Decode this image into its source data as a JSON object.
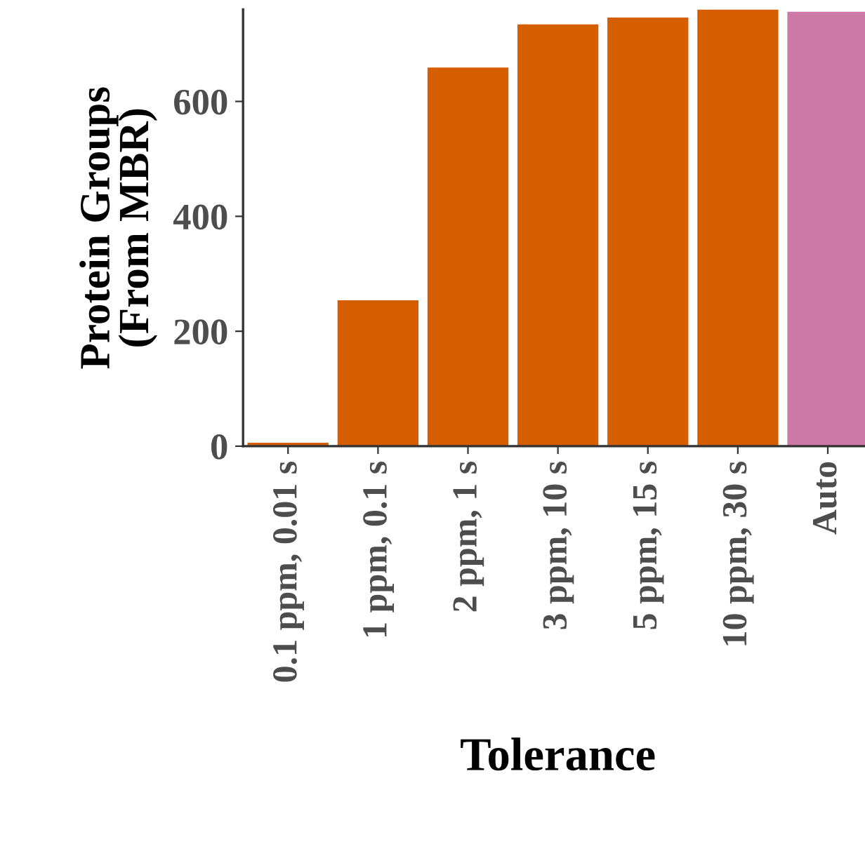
{
  "chart_data": {
    "type": "bar",
    "xlabel": "Tolerance",
    "ylabel": "Protein Groups\n(From MBR)",
    "categories": [
      "0.1 ppm, 0.01 s",
      "1 ppm, 0.1 s",
      "2 ppm, 1 s",
      "3 ppm, 10 s",
      "5 ppm, 15 s",
      "10 ppm, 30 s",
      "Auto"
    ],
    "values": [
      6,
      254,
      659,
      734,
      746,
      760,
      756
    ],
    "colors": [
      "#d55e00",
      "#d55e00",
      "#d55e00",
      "#d55e00",
      "#d55e00",
      "#d55e00",
      "#cc79a7"
    ],
    "ylim": [
      0,
      760
    ],
    "yticks": [
      0,
      200,
      400,
      600
    ],
    "grid": false,
    "legend": false
  }
}
